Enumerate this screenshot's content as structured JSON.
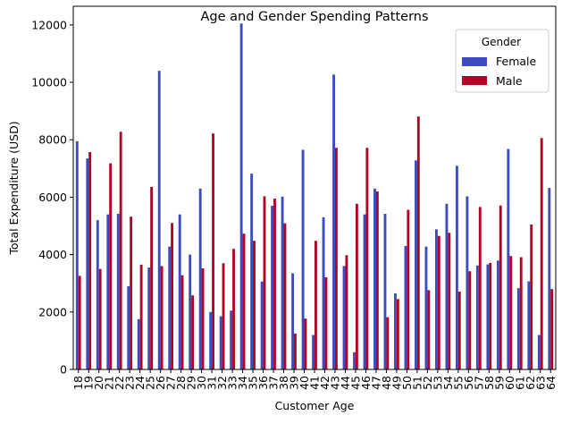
{
  "chart_data": {
    "type": "bar",
    "title": "Age and Gender Spending Patterns",
    "xlabel": "Customer Age",
    "ylabel": "Total Expenditure (USD)",
    "ylim": [
      0,
      12650
    ],
    "yticks": [
      0,
      2000,
      4000,
      6000,
      8000,
      10000,
      12000
    ],
    "grid": false,
    "legend": {
      "title": "Gender",
      "position": "top-right"
    },
    "categories": [
      "18",
      "19",
      "20",
      "21",
      "22",
      "23",
      "24",
      "25",
      "26",
      "27",
      "28",
      "29",
      "30",
      "31",
      "32",
      "33",
      "34",
      "35",
      "36",
      "37",
      "38",
      "39",
      "40",
      "41",
      "42",
      "43",
      "44",
      "45",
      "46",
      "47",
      "48",
      "49",
      "50",
      "51",
      "52",
      "53",
      "54",
      "55",
      "56",
      "57",
      "58",
      "59",
      "60",
      "61",
      "62",
      "63",
      "64"
    ],
    "series": [
      {
        "name": "Female",
        "color": "#3b4cc0",
        "values": [
          7950,
          7350,
          5200,
          5400,
          5420,
          2900,
          1750,
          3550,
          10400,
          4280,
          5400,
          4000,
          6300,
          2000,
          1850,
          2050,
          12050,
          6820,
          3060,
          5700,
          6020,
          3350,
          7650,
          1200,
          5300,
          10270,
          3600,
          600,
          5400,
          6300,
          5420,
          2650,
          4300,
          7280,
          4280,
          4880,
          5770,
          7090,
          6030,
          3620,
          3660,
          3790,
          7680,
          2830,
          3070,
          1200,
          6320
        ]
      },
      {
        "name": "Male",
        "color": "#b40426",
        "values": [
          3260,
          7570,
          3500,
          7180,
          8280,
          5320,
          3650,
          6360,
          3600,
          5100,
          3280,
          2580,
          3520,
          8220,
          3700,
          4200,
          4730,
          4480,
          6030,
          5950,
          5090,
          1250,
          1770,
          4480,
          3210,
          7720,
          3980,
          5770,
          7720,
          6200,
          1820,
          2450,
          5560,
          8810,
          2760,
          4650,
          4760,
          2710,
          3420,
          5660,
          3710,
          5710,
          3950,
          3910,
          5050,
          8060,
          2800
        ]
      }
    ]
  }
}
